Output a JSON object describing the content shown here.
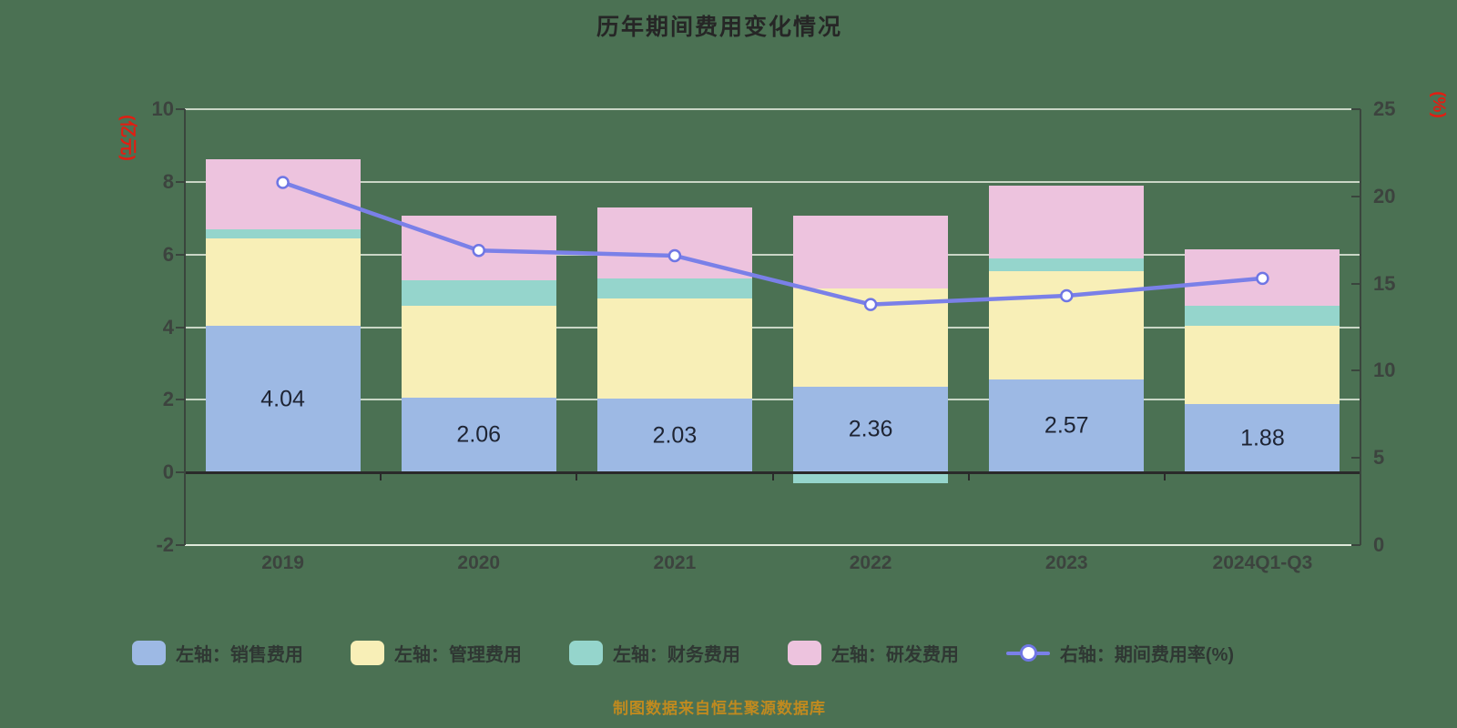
{
  "title": "历年期间费用变化情况",
  "caption": "制图数据来自恒生聚源数据库",
  "colors": {
    "background": "#4b7153",
    "sales": "#9db9e4",
    "admin": "#f8efb7",
    "finance": "#95d5cc",
    "rd": "#edc3de",
    "line": "#7a80e8",
    "marker_fill": "#ffffff",
    "marker_stroke": "#6f76e4",
    "grid_light": "#c9d6c6",
    "bottom_line": "#dfe9da",
    "zero_line": "#2a2a2a",
    "axis_line": "#3a453d",
    "tick_text": "#3c433e",
    "bar_label_text": "#1e2433",
    "axis_unit_red": "#e21d12",
    "caption_text": "#c08a1f"
  },
  "chart_data": {
    "type": "bar-line-combo",
    "subtype": "stacked bars (left axis, 亿元) + rate line (right axis, %)",
    "categories": [
      "2019",
      "2020",
      "2021",
      "2022",
      "2023",
      "2024Q1-Q3"
    ],
    "bar_series": [
      {
        "name": "左轴：销售费用",
        "color_key": "sales",
        "values": [
          4.04,
          2.06,
          2.03,
          2.36,
          2.57,
          1.88
        ],
        "labeled": true
      },
      {
        "name": "左轴：管理费用",
        "color_key": "admin",
        "values": [
          2.41,
          2.52,
          2.77,
          2.7,
          2.96,
          2.15
        ]
      },
      {
        "name": "左轴：财务费用",
        "color_key": "finance",
        "values": [
          0.25,
          0.72,
          0.55,
          -0.3,
          0.37,
          0.55
        ]
      },
      {
        "name": "左轴：研发费用",
        "color_key": "rd",
        "values": [
          1.92,
          1.78,
          1.95,
          2.0,
          2.0,
          1.57
        ]
      }
    ],
    "line_series": {
      "name": "右轴：期间费用率(%)",
      "values": [
        20.8,
        16.9,
        16.6,
        13.8,
        14.3,
        15.3
      ]
    },
    "bar_labels": [
      "4.04",
      "2.06",
      "2.03",
      "2.36",
      "2.57",
      "1.88"
    ],
    "left_axis": {
      "label": "(亿元)",
      "min": -2,
      "max": 10,
      "ticks": [
        10,
        8,
        6,
        4,
        2,
        0,
        -2
      ]
    },
    "right_axis": {
      "label": "(%)",
      "min": 0,
      "max": 25,
      "ticks": [
        25,
        20,
        15,
        10,
        5,
        0
      ]
    },
    "grid": true,
    "legend_position": "bottom"
  }
}
